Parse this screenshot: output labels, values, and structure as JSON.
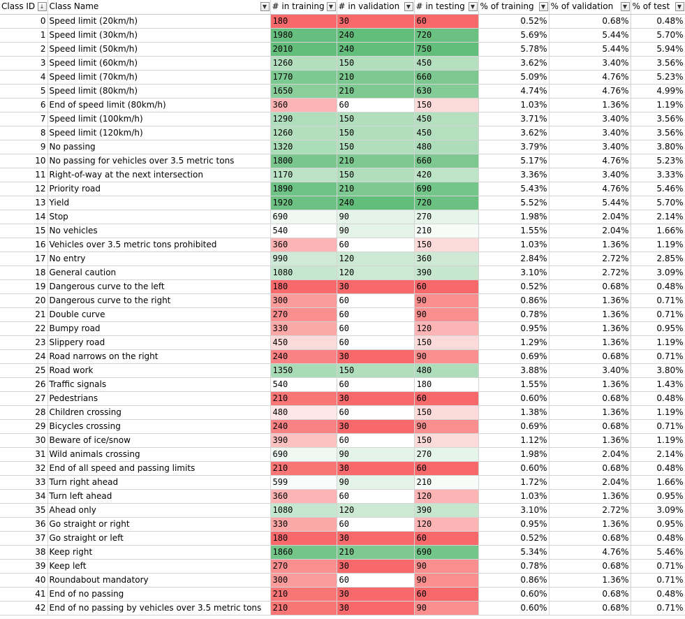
{
  "headers": {
    "class_id": "Class ID",
    "class_name": "Class Name",
    "train": "# in training",
    "val": "# in validation",
    "test": "# in testing",
    "pct_train": "% of training",
    "pct_val": "% of validation",
    "pct_test": "% of test"
  },
  "icons": {
    "sort_filter": "sort-descending-filter-icon",
    "filter": "filter-dropdown-icon"
  },
  "scale_colors": {
    "low": "#F8696B",
    "mid": "#FFFFFF",
    "high": "#63BE7B"
  },
  "rows": [
    {
      "id": "0",
      "name": "Speed limit (20km/h)",
      "train": "180",
      "val": "30",
      "test": "60",
      "p_train": "0.52%",
      "p_val": "0.68%",
      "p_test": "0.48%"
    },
    {
      "id": "1",
      "name": "Speed limit (30km/h)",
      "train": "1980",
      "val": "240",
      "test": "720",
      "p_train": "5.69%",
      "p_val": "5.44%",
      "p_test": "5.70%"
    },
    {
      "id": "2",
      "name": "Speed limit (50km/h)",
      "train": "2010",
      "val": "240",
      "test": "750",
      "p_train": "5.78%",
      "p_val": "5.44%",
      "p_test": "5.94%"
    },
    {
      "id": "3",
      "name": "Speed limit (60km/h)",
      "train": "1260",
      "val": "150",
      "test": "450",
      "p_train": "3.62%",
      "p_val": "3.40%",
      "p_test": "3.56%"
    },
    {
      "id": "4",
      "name": "Speed limit (70km/h)",
      "train": "1770",
      "val": "210",
      "test": "660",
      "p_train": "5.09%",
      "p_val": "4.76%",
      "p_test": "5.23%"
    },
    {
      "id": "5",
      "name": "Speed limit (80km/h)",
      "train": "1650",
      "val": "210",
      "test": "630",
      "p_train": "4.74%",
      "p_val": "4.76%",
      "p_test": "4.99%"
    },
    {
      "id": "6",
      "name": "End of speed limit (80km/h)",
      "train": "360",
      "val": "60",
      "test": "150",
      "p_train": "1.03%",
      "p_val": "1.36%",
      "p_test": "1.19%"
    },
    {
      "id": "7",
      "name": "Speed limit (100km/h)",
      "train": "1290",
      "val": "150",
      "test": "450",
      "p_train": "3.71%",
      "p_val": "3.40%",
      "p_test": "3.56%"
    },
    {
      "id": "8",
      "name": "Speed limit (120km/h)",
      "train": "1260",
      "val": "150",
      "test": "450",
      "p_train": "3.62%",
      "p_val": "3.40%",
      "p_test": "3.56%"
    },
    {
      "id": "9",
      "name": "No passing",
      "train": "1320",
      "val": "150",
      "test": "480",
      "p_train": "3.79%",
      "p_val": "3.40%",
      "p_test": "3.80%"
    },
    {
      "id": "10",
      "name": "No passing for vehicles over 3.5 metric tons",
      "train": "1800",
      "val": "210",
      "test": "660",
      "p_train": "5.17%",
      "p_val": "4.76%",
      "p_test": "5.23%"
    },
    {
      "id": "11",
      "name": "Right-of-way at the next intersection",
      "train": "1170",
      "val": "150",
      "test": "420",
      "p_train": "3.36%",
      "p_val": "3.40%",
      "p_test": "3.33%"
    },
    {
      "id": "12",
      "name": "Priority road",
      "train": "1890",
      "val": "210",
      "test": "690",
      "p_train": "5.43%",
      "p_val": "4.76%",
      "p_test": "5.46%"
    },
    {
      "id": "13",
      "name": "Yield",
      "train": "1920",
      "val": "240",
      "test": "720",
      "p_train": "5.52%",
      "p_val": "5.44%",
      "p_test": "5.70%"
    },
    {
      "id": "14",
      "name": "Stop",
      "train": "690",
      "val": "90",
      "test": "270",
      "p_train": "1.98%",
      "p_val": "2.04%",
      "p_test": "2.14%"
    },
    {
      "id": "15",
      "name": "No vehicles",
      "train": "540",
      "val": "90",
      "test": "210",
      "p_train": "1.55%",
      "p_val": "2.04%",
      "p_test": "1.66%"
    },
    {
      "id": "16",
      "name": "Vehicles over 3.5 metric tons prohibited",
      "train": "360",
      "val": "60",
      "test": "150",
      "p_train": "1.03%",
      "p_val": "1.36%",
      "p_test": "1.19%"
    },
    {
      "id": "17",
      "name": "No entry",
      "train": "990",
      "val": "120",
      "test": "360",
      "p_train": "2.84%",
      "p_val": "2.72%",
      "p_test": "2.85%"
    },
    {
      "id": "18",
      "name": "General caution",
      "train": "1080",
      "val": "120",
      "test": "390",
      "p_train": "3.10%",
      "p_val": "2.72%",
      "p_test": "3.09%"
    },
    {
      "id": "19",
      "name": "Dangerous curve to the left",
      "train": "180",
      "val": "30",
      "test": "60",
      "p_train": "0.52%",
      "p_val": "0.68%",
      "p_test": "0.48%"
    },
    {
      "id": "20",
      "name": "Dangerous curve to the right",
      "train": "300",
      "val": "60",
      "test": "90",
      "p_train": "0.86%",
      "p_val": "1.36%",
      "p_test": "0.71%"
    },
    {
      "id": "21",
      "name": "Double curve",
      "train": "270",
      "val": "60",
      "test": "90",
      "p_train": "0.78%",
      "p_val": "1.36%",
      "p_test": "0.71%"
    },
    {
      "id": "22",
      "name": "Bumpy road",
      "train": "330",
      "val": "60",
      "test": "120",
      "p_train": "0.95%",
      "p_val": "1.36%",
      "p_test": "0.95%"
    },
    {
      "id": "23",
      "name": "Slippery road",
      "train": "450",
      "val": "60",
      "test": "150",
      "p_train": "1.29%",
      "p_val": "1.36%",
      "p_test": "1.19%"
    },
    {
      "id": "24",
      "name": "Road narrows on the right",
      "train": "240",
      "val": "30",
      "test": "90",
      "p_train": "0.69%",
      "p_val": "0.68%",
      "p_test": "0.71%"
    },
    {
      "id": "25",
      "name": "Road work",
      "train": "1350",
      "val": "150",
      "test": "480",
      "p_train": "3.88%",
      "p_val": "3.40%",
      "p_test": "3.80%"
    },
    {
      "id": "26",
      "name": "Traffic signals",
      "train": "540",
      "val": "60",
      "test": "180",
      "p_train": "1.55%",
      "p_val": "1.36%",
      "p_test": "1.43%"
    },
    {
      "id": "27",
      "name": "Pedestrians",
      "train": "210",
      "val": "30",
      "test": "60",
      "p_train": "0.60%",
      "p_val": "0.68%",
      "p_test": "0.48%"
    },
    {
      "id": "28",
      "name": "Children crossing",
      "train": "480",
      "val": "60",
      "test": "150",
      "p_train": "1.38%",
      "p_val": "1.36%",
      "p_test": "1.19%"
    },
    {
      "id": "29",
      "name": "Bicycles crossing",
      "train": "240",
      "val": "30",
      "test": "90",
      "p_train": "0.69%",
      "p_val": "0.68%",
      "p_test": "0.71%"
    },
    {
      "id": "30",
      "name": "Beware of ice/snow",
      "train": "390",
      "val": "60",
      "test": "150",
      "p_train": "1.12%",
      "p_val": "1.36%",
      "p_test": "1.19%"
    },
    {
      "id": "31",
      "name": "Wild animals crossing",
      "train": "690",
      "val": "90",
      "test": "270",
      "p_train": "1.98%",
      "p_val": "2.04%",
      "p_test": "2.14%"
    },
    {
      "id": "32",
      "name": "End of all speed and passing limits",
      "train": "210",
      "val": "30",
      "test": "60",
      "p_train": "0.60%",
      "p_val": "0.68%",
      "p_test": "0.48%"
    },
    {
      "id": "33",
      "name": "Turn right ahead",
      "train": "599",
      "val": "90",
      "test": "210",
      "p_train": "1.72%",
      "p_val": "2.04%",
      "p_test": "1.66%"
    },
    {
      "id": "34",
      "name": "Turn left ahead",
      "train": "360",
      "val": "60",
      "test": "120",
      "p_train": "1.03%",
      "p_val": "1.36%",
      "p_test": "0.95%"
    },
    {
      "id": "35",
      "name": "Ahead only",
      "train": "1080",
      "val": "120",
      "test": "390",
      "p_train": "3.10%",
      "p_val": "2.72%",
      "p_test": "3.09%"
    },
    {
      "id": "36",
      "name": "Go straight or right",
      "train": "330",
      "val": "60",
      "test": "120",
      "p_train": "0.95%",
      "p_val": "1.36%",
      "p_test": "0.95%"
    },
    {
      "id": "37",
      "name": "Go straight or left",
      "train": "180",
      "val": "30",
      "test": "60",
      "p_train": "0.52%",
      "p_val": "0.68%",
      "p_test": "0.48%"
    },
    {
      "id": "38",
      "name": "Keep right",
      "train": "1860",
      "val": "210",
      "test": "690",
      "p_train": "5.34%",
      "p_val": "4.76%",
      "p_test": "5.46%"
    },
    {
      "id": "39",
      "name": "Keep left",
      "train": "270",
      "val": "30",
      "test": "90",
      "p_train": "0.78%",
      "p_val": "0.68%",
      "p_test": "0.71%"
    },
    {
      "id": "40",
      "name": "Roundabout mandatory",
      "train": "300",
      "val": "60",
      "test": "90",
      "p_train": "0.86%",
      "p_val": "1.36%",
      "p_test": "0.71%"
    },
    {
      "id": "41",
      "name": "End of no passing",
      "train": "210",
      "val": "30",
      "test": "60",
      "p_train": "0.60%",
      "p_val": "0.68%",
      "p_test": "0.48%"
    },
    {
      "id": "42",
      "name": "End of no passing by vehicles over 3.5 metric tons",
      "train": "210",
      "val": "30",
      "test": "90",
      "p_train": "0.60%",
      "p_val": "0.68%",
      "p_test": "0.71%"
    }
  ]
}
